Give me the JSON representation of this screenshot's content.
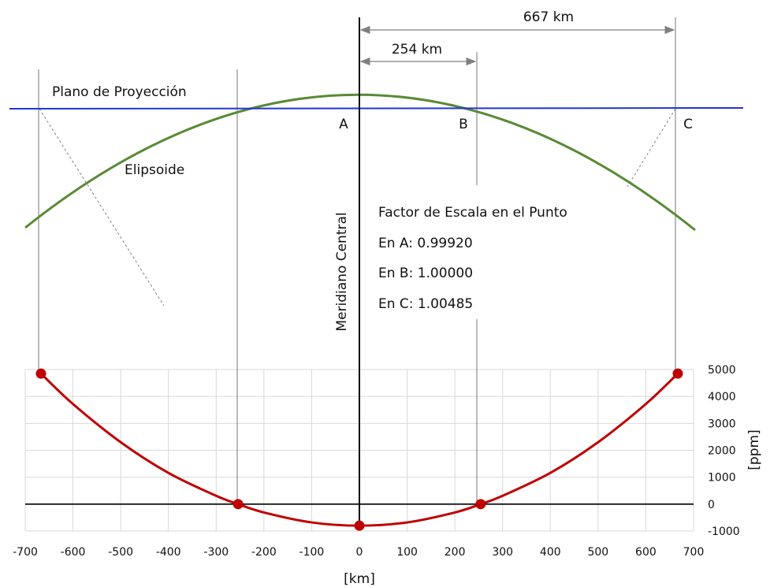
{
  "diagram": {
    "projection_plane_label": "Plano de Proyección",
    "ellipsoid_label": "Elipsoide",
    "central_meridian_label": "Meridiano Central",
    "point_labels": {
      "a": "A",
      "b": "B",
      "c": "C"
    },
    "dimensions": {
      "ab": "254 km",
      "ac": "667 km"
    },
    "scale_factor": {
      "title": "Factor de Escala en el Punto",
      "a": "En A: 0.99920",
      "b": "En B: 1.00000",
      "c": "En C: 1.00485"
    },
    "colors": {
      "projection_plane": "#1f35d6",
      "ellipsoid": "#5a8a35",
      "curve": "#c00000",
      "grid": "#d9d9d9"
    }
  },
  "chart_data": {
    "type": "line",
    "xlabel": "[km]",
    "ylabel": "[ppm]",
    "xlim": [
      -700,
      700
    ],
    "ylim": [
      -1000,
      5000
    ],
    "x_ticks": [
      -700,
      -600,
      -500,
      -400,
      -300,
      -200,
      -100,
      0,
      100,
      200,
      300,
      400,
      500,
      600,
      700
    ],
    "y_ticks": [
      -1000,
      0,
      1000,
      2000,
      3000,
      4000,
      5000
    ],
    "grid": true,
    "series": [
      {
        "x": [
          -667,
          -600,
          -500,
          -400,
          -300,
          -254,
          -200,
          -100,
          0,
          100,
          200,
          254,
          300,
          400,
          500,
          600,
          667
        ],
        "y": [
          4850,
          3720,
          2300,
          1160,
          310,
          0,
          -310,
          -680,
          -800,
          -680,
          -310,
          0,
          310,
          1160,
          2300,
          3720,
          4850
        ]
      }
    ],
    "markers": [
      {
        "x": -667,
        "y": 4850
      },
      {
        "x": -254,
        "y": 0
      },
      {
        "x": 0,
        "y": -800
      },
      {
        "x": 254,
        "y": 0
      },
      {
        "x": 667,
        "y": 4850
      }
    ]
  }
}
